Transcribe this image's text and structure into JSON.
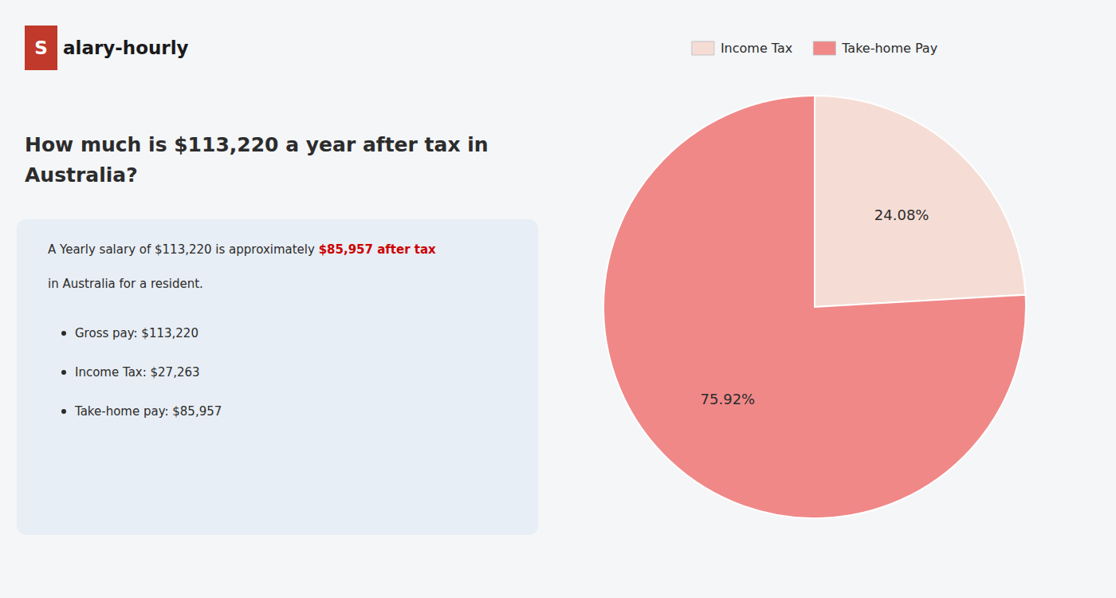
{
  "chart_data": {
    "type": "pie",
    "title": "How much is $113,220 a year after tax in\nAustralia?",
    "categories": [
      "Income Tax",
      "Take-home Pay"
    ],
    "values": [
      24.08,
      75.92
    ],
    "value_labels": [
      "24.08%",
      "75.92%"
    ],
    "colors": [
      "#f5ddd5",
      "#f08888"
    ],
    "data_labels": true,
    "legend": "top",
    "annotations": [
      "S",
      "alary-hourly",
      "A Yearly salary of $113,220 is approximately ",
      "$85,957 after tax",
      "in Australia for a resident.",
      "Gross pay: $113,220",
      "Income Tax: $27,263",
      "Take-home pay: $85,957"
    ]
  }
}
